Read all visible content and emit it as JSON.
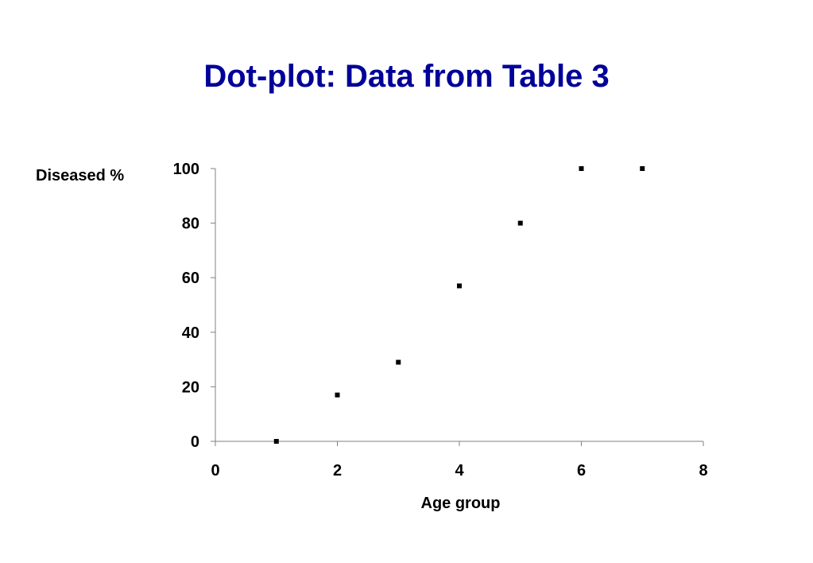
{
  "chart_data": {
    "type": "scatter",
    "title": "Dot-plot: Data from Table 3",
    "xlabel": "Age group",
    "ylabel": "Diseased %",
    "xlim": [
      0,
      8
    ],
    "ylim": [
      0,
      100
    ],
    "x_ticks": [
      0,
      2,
      4,
      6,
      8
    ],
    "y_ticks": [
      0,
      20,
      40,
      60,
      80,
      100
    ],
    "grid": false,
    "series": [
      {
        "x": [
          1,
          2,
          3,
          4,
          5,
          6,
          7
        ],
        "y": [
          0,
          17,
          29,
          57,
          80,
          100,
          100
        ]
      }
    ],
    "colors": {
      "title": "#000099",
      "marker": "#000000",
      "axis": "#808080"
    }
  }
}
